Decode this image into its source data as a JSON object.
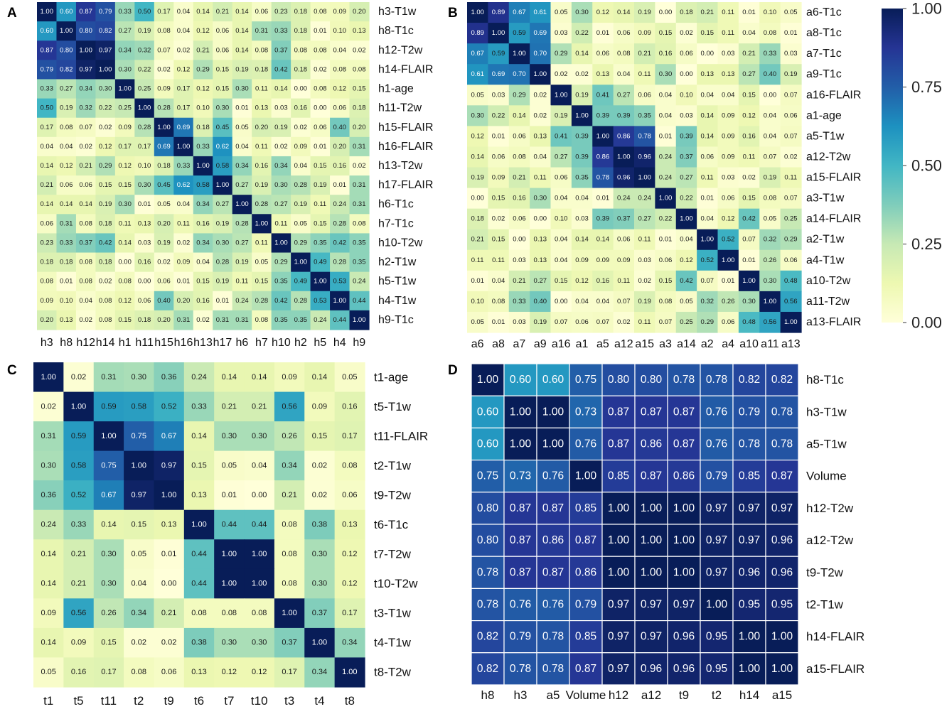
{
  "colorbar": {
    "stops": [
      "#ffffd9",
      "#edf8b1",
      "#c7e9b4",
      "#7fcdbb",
      "#41b6c4",
      "#1d91c0",
      "#225ea8",
      "#253494",
      "#081d58"
    ],
    "ticks": [
      1.0,
      0.75,
      0.5,
      0.25,
      0.0
    ],
    "tick_labels": [
      "1.00",
      "0.75",
      "0.50",
      "0.25",
      "0.00"
    ]
  },
  "chart_data": [
    {
      "type": "heatmap",
      "panel": "A",
      "title": "",
      "x_labels": [
        "h3",
        "h8",
        "h12",
        "h14",
        "h1",
        "h11",
        "h15",
        "h16",
        "h13",
        "h17",
        "h6",
        "h7",
        "h10",
        "h2",
        "h5",
        "h4",
        "h9"
      ],
      "y_labels": [
        "h3-T1w",
        "h8-T1c",
        "h12-T2w",
        "h14-FLAIR",
        "h1-age",
        "h11-T2w",
        "h15-FLAIR",
        "h16-FLAIR",
        "h13-T2w",
        "h17-FLAIR",
        "h6-T1c",
        "h7-T1c",
        "h10-T2w",
        "h2-T1w",
        "h5-T1w",
        "h4-T1w",
        "h9-T1c"
      ],
      "values": [
        [
          1.0,
          0.6,
          0.87,
          0.79,
          0.33,
          0.5,
          0.17,
          0.04,
          0.14,
          0.21,
          0.14,
          0.06,
          0.23,
          0.18,
          0.08,
          0.09,
          0.2
        ],
        [
          0.6,
          1.0,
          0.8,
          0.82,
          0.27,
          0.19,
          0.08,
          0.04,
          0.12,
          0.06,
          0.14,
          0.31,
          0.33,
          0.18,
          0.01,
          0.1,
          0.13
        ],
        [
          0.87,
          0.8,
          1.0,
          0.97,
          0.34,
          0.32,
          0.07,
          0.02,
          0.21,
          0.06,
          0.14,
          0.08,
          0.37,
          0.08,
          0.08,
          0.04,
          0.02
        ],
        [
          0.79,
          0.82,
          0.97,
          1.0,
          0.3,
          0.22,
          0.02,
          0.12,
          0.29,
          0.15,
          0.19,
          0.18,
          0.42,
          0.18,
          0.02,
          0.08,
          0.08
        ],
        [
          0.33,
          0.27,
          0.34,
          0.3,
          1.0,
          0.25,
          0.09,
          0.17,
          0.12,
          0.15,
          0.3,
          0.11,
          0.14,
          0.0,
          0.08,
          0.12,
          0.15
        ],
        [
          0.5,
          0.19,
          0.32,
          0.22,
          0.25,
          1.0,
          0.28,
          0.17,
          0.1,
          0.3,
          0.01,
          0.13,
          0.03,
          0.16,
          0.0,
          0.06,
          0.18
        ],
        [
          0.17,
          0.08,
          0.07,
          0.02,
          0.09,
          0.28,
          1.0,
          0.69,
          0.18,
          0.45,
          0.05,
          0.2,
          0.19,
          0.02,
          0.06,
          0.4,
          0.2
        ],
        [
          0.04,
          0.04,
          0.02,
          0.12,
          0.17,
          0.17,
          0.69,
          1.0,
          0.33,
          0.62,
          0.04,
          0.11,
          0.02,
          0.09,
          0.01,
          0.2,
          0.31
        ],
        [
          0.14,
          0.12,
          0.21,
          0.29,
          0.12,
          0.1,
          0.18,
          0.33,
          1.0,
          0.58,
          0.34,
          0.16,
          0.34,
          0.04,
          0.15,
          0.16,
          0.02
        ],
        [
          0.21,
          0.06,
          0.06,
          0.15,
          0.15,
          0.3,
          0.45,
          0.62,
          0.58,
          1.0,
          0.27,
          0.19,
          0.3,
          0.28,
          0.19,
          0.01,
          0.31
        ],
        [
          0.14,
          0.14,
          0.14,
          0.19,
          0.3,
          0.01,
          0.05,
          0.04,
          0.34,
          0.27,
          1.0,
          0.28,
          0.27,
          0.19,
          0.11,
          0.24,
          0.31
        ],
        [
          0.06,
          0.31,
          0.08,
          0.18,
          0.11,
          0.13,
          0.2,
          0.11,
          0.16,
          0.19,
          0.28,
          1.0,
          0.11,
          0.05,
          0.15,
          0.28,
          0.08
        ],
        [
          0.23,
          0.33,
          0.37,
          0.42,
          0.14,
          0.03,
          0.19,
          0.02,
          0.34,
          0.3,
          0.27,
          0.11,
          1.0,
          0.29,
          0.35,
          0.42,
          0.35
        ],
        [
          0.18,
          0.18,
          0.08,
          0.18,
          0.0,
          0.16,
          0.02,
          0.09,
          0.04,
          0.28,
          0.19,
          0.05,
          0.29,
          1.0,
          0.49,
          0.28,
          0.35
        ],
        [
          0.08,
          0.01,
          0.08,
          0.02,
          0.08,
          0.0,
          0.06,
          0.01,
          0.15,
          0.19,
          0.11,
          0.15,
          0.35,
          0.49,
          1.0,
          0.53,
          0.24
        ],
        [
          0.09,
          0.1,
          0.04,
          0.08,
          0.12,
          0.06,
          0.4,
          0.2,
          0.16,
          0.01,
          0.24,
          0.28,
          0.42,
          0.28,
          0.53,
          1.0,
          0.44
        ],
        [
          0.2,
          0.13,
          0.02,
          0.08,
          0.15,
          0.18,
          0.2,
          0.31,
          0.02,
          0.31,
          0.31,
          0.08,
          0.35,
          0.35,
          0.24,
          0.44,
          1.0
        ]
      ]
    },
    {
      "type": "heatmap",
      "panel": "B",
      "title": "",
      "x_labels": [
        "a6",
        "a8",
        "a7",
        "a9",
        "a16",
        "a1",
        "a5",
        "a12",
        "a15",
        "a3",
        "a14",
        "a2",
        "a4",
        "a10",
        "a11",
        "a13"
      ],
      "y_labels": [
        "a6-T1c",
        "a8-T1c",
        "a7-T1c",
        "a9-T1c",
        "a16-FLAIR",
        "a1-age",
        "a5-T1w",
        "a12-T2w",
        "a15-FLAIR",
        "a3-T1w",
        "a14-FLAIR",
        "a2-T1w",
        "a4-T1w",
        "a10-T2w",
        "a11-T2w",
        "a13-FLAIR"
      ],
      "values": [
        [
          1.0,
          0.89,
          0.67,
          0.61,
          0.05,
          0.3,
          0.12,
          0.14,
          0.19,
          0.0,
          0.18,
          0.21,
          0.11,
          0.01,
          0.1,
          0.05
        ],
        [
          0.89,
          1.0,
          0.59,
          0.69,
          0.03,
          0.22,
          0.01,
          0.06,
          0.09,
          0.15,
          0.02,
          0.15,
          0.11,
          0.04,
          0.08,
          0.01
        ],
        [
          0.67,
          0.59,
          1.0,
          0.7,
          0.29,
          0.14,
          0.06,
          0.08,
          0.21,
          0.16,
          0.06,
          0.0,
          0.03,
          0.21,
          0.33,
          0.03
        ],
        [
          0.61,
          0.69,
          0.7,
          1.0,
          0.02,
          0.02,
          0.13,
          0.04,
          0.11,
          0.3,
          0.0,
          0.13,
          0.13,
          0.27,
          0.4,
          0.19
        ],
        [
          0.05,
          0.03,
          0.29,
          0.02,
          1.0,
          0.19,
          0.41,
          0.27,
          0.06,
          0.04,
          0.1,
          0.04,
          0.04,
          0.15,
          0.0,
          0.07
        ],
        [
          0.3,
          0.22,
          0.14,
          0.02,
          0.19,
          1.0,
          0.39,
          0.39,
          0.35,
          0.04,
          0.03,
          0.14,
          0.09,
          0.12,
          0.04,
          0.06
        ],
        [
          0.12,
          0.01,
          0.06,
          0.13,
          0.41,
          0.39,
          1.0,
          0.86,
          0.78,
          0.01,
          0.39,
          0.14,
          0.09,
          0.16,
          0.04,
          0.07
        ],
        [
          0.14,
          0.06,
          0.08,
          0.04,
          0.27,
          0.39,
          0.86,
          1.0,
          0.96,
          0.24,
          0.37,
          0.06,
          0.09,
          0.11,
          0.07,
          0.02
        ],
        [
          0.19,
          0.09,
          0.21,
          0.11,
          0.06,
          0.35,
          0.78,
          0.96,
          1.0,
          0.24,
          0.27,
          0.11,
          0.03,
          0.02,
          0.19,
          0.11
        ],
        [
          0.0,
          0.15,
          0.16,
          0.3,
          0.04,
          0.04,
          0.01,
          0.24,
          0.24,
          1.0,
          0.22,
          0.01,
          0.06,
          0.15,
          0.08,
          0.07
        ],
        [
          0.18,
          0.02,
          0.06,
          0.0,
          0.1,
          0.03,
          0.39,
          0.37,
          0.27,
          0.22,
          1.0,
          0.04,
          0.12,
          0.42,
          0.05,
          0.25
        ],
        [
          0.21,
          0.15,
          0.0,
          0.13,
          0.04,
          0.14,
          0.14,
          0.06,
          0.11,
          0.01,
          0.04,
          1.0,
          0.52,
          0.07,
          0.32,
          0.29
        ],
        [
          0.11,
          0.11,
          0.03,
          0.13,
          0.04,
          0.09,
          0.09,
          0.09,
          0.03,
          0.06,
          0.12,
          0.52,
          1.0,
          0.01,
          0.26,
          0.06
        ],
        [
          0.01,
          0.04,
          0.21,
          0.27,
          0.15,
          0.12,
          0.16,
          0.11,
          0.02,
          0.15,
          0.42,
          0.07,
          0.01,
          1.0,
          0.3,
          0.48
        ],
        [
          0.1,
          0.08,
          0.33,
          0.4,
          0.0,
          0.04,
          0.04,
          0.07,
          0.19,
          0.08,
          0.05,
          0.32,
          0.26,
          0.3,
          1.0,
          0.56
        ],
        [
          0.05,
          0.01,
          0.03,
          0.19,
          0.07,
          0.06,
          0.07,
          0.02,
          0.11,
          0.07,
          0.25,
          0.29,
          0.06,
          0.48,
          0.56,
          1.0
        ]
      ]
    },
    {
      "type": "heatmap",
      "panel": "C",
      "title": "",
      "x_labels": [
        "t1",
        "t5",
        "t11",
        "t2",
        "t9",
        "t6",
        "t7",
        "t10",
        "t3",
        "t4",
        "t8"
      ],
      "y_labels": [
        "t1-age",
        "t5-T1w",
        "t11-FLAIR",
        "t2-T1w",
        "t9-T2w",
        "t6-T1c",
        "t7-T2w",
        "t10-T2w",
        "t3-T1w",
        "t4-T1w",
        "t8-T2w"
      ],
      "values": [
        [
          1.0,
          0.02,
          0.31,
          0.3,
          0.36,
          0.24,
          0.14,
          0.14,
          0.09,
          0.14,
          0.05
        ],
        [
          0.02,
          1.0,
          0.59,
          0.58,
          0.52,
          0.33,
          0.21,
          0.21,
          0.56,
          0.09,
          0.16
        ],
        [
          0.31,
          0.59,
          1.0,
          0.75,
          0.67,
          0.14,
          0.3,
          0.3,
          0.26,
          0.15,
          0.17
        ],
        [
          0.3,
          0.58,
          0.75,
          1.0,
          0.97,
          0.15,
          0.05,
          0.04,
          0.34,
          0.02,
          0.08
        ],
        [
          0.36,
          0.52,
          0.67,
          0.97,
          1.0,
          0.13,
          0.01,
          0.0,
          0.21,
          0.02,
          0.06
        ],
        [
          0.24,
          0.33,
          0.14,
          0.15,
          0.13,
          1.0,
          0.44,
          0.44,
          0.08,
          0.38,
          0.13
        ],
        [
          0.14,
          0.21,
          0.3,
          0.05,
          0.01,
          0.44,
          1.0,
          1.0,
          0.08,
          0.3,
          0.12
        ],
        [
          0.14,
          0.21,
          0.3,
          0.04,
          0.0,
          0.44,
          1.0,
          1.0,
          0.08,
          0.3,
          0.12
        ],
        [
          0.09,
          0.56,
          0.26,
          0.34,
          0.21,
          0.08,
          0.08,
          0.08,
          1.0,
          0.37,
          0.17
        ],
        [
          0.14,
          0.09,
          0.15,
          0.02,
          0.02,
          0.38,
          0.3,
          0.3,
          0.37,
          1.0,
          0.34
        ],
        [
          0.05,
          0.16,
          0.17,
          0.08,
          0.06,
          0.13,
          0.12,
          0.12,
          0.17,
          0.34,
          1.0
        ]
      ]
    },
    {
      "type": "heatmap",
      "panel": "D",
      "title": "",
      "x_labels": [
        "h8",
        "h3",
        "a5",
        "Volume",
        "h12",
        "a12",
        "t9",
        "t2",
        "h14",
        "a15"
      ],
      "y_labels": [
        "h8-T1c",
        "h3-T1w",
        "a5-T1w",
        "Volume",
        "h12-T2w",
        "a12-T2w",
        "t9-T2w",
        "t2-T1w",
        "h14-FLAIR",
        "a15-FLAIR"
      ],
      "y_label_colors": [
        "#111111",
        "#3a8fd8",
        "#3a8fd8",
        "#e02020",
        "#2a58b8",
        "#2a58b8",
        "#3a6fd0",
        "#111111",
        "#253a6a",
        "#2a58b8"
      ],
      "values": [
        [
          1.0,
          0.6,
          0.6,
          0.75,
          0.8,
          0.8,
          0.78,
          0.78,
          0.82,
          0.82
        ],
        [
          0.6,
          1.0,
          1.0,
          0.73,
          0.87,
          0.87,
          0.87,
          0.76,
          0.79,
          0.78
        ],
        [
          0.6,
          1.0,
          1.0,
          0.76,
          0.87,
          0.86,
          0.87,
          0.76,
          0.78,
          0.78
        ],
        [
          0.75,
          0.73,
          0.76,
          1.0,
          0.85,
          0.87,
          0.86,
          0.79,
          0.85,
          0.87
        ],
        [
          0.8,
          0.87,
          0.87,
          0.85,
          1.0,
          1.0,
          1.0,
          0.97,
          0.97,
          0.97
        ],
        [
          0.8,
          0.87,
          0.86,
          0.87,
          1.0,
          1.0,
          1.0,
          0.97,
          0.97,
          0.96
        ],
        [
          0.78,
          0.87,
          0.87,
          0.86,
          1.0,
          1.0,
          1.0,
          0.97,
          0.96,
          0.96
        ],
        [
          0.78,
          0.76,
          0.76,
          0.79,
          0.97,
          0.97,
          0.97,
          1.0,
          0.95,
          0.95
        ],
        [
          0.82,
          0.79,
          0.78,
          0.85,
          0.97,
          0.97,
          0.96,
          0.95,
          1.0,
          1.0
        ],
        [
          0.82,
          0.78,
          0.78,
          0.87,
          0.97,
          0.96,
          0.96,
          0.95,
          1.0,
          1.0
        ]
      ]
    }
  ]
}
